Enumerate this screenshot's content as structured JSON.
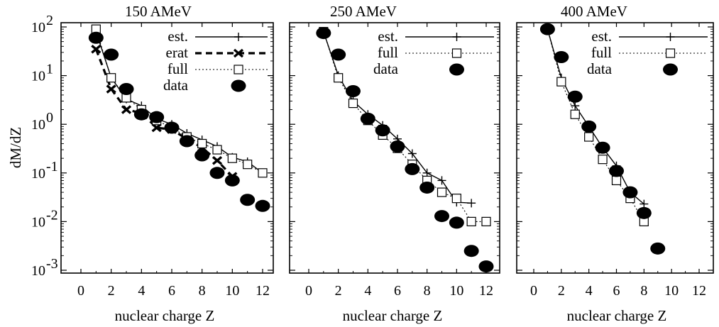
{
  "chart_data": [
    {
      "type": "line",
      "title": "150 AMeV",
      "xlabel": "nuclear charge Z",
      "ylabel": "dM/dZ",
      "y_scale": "log",
      "xlim": [
        0,
        12.5
      ],
      "ylim": [
        0.001,
        100
      ],
      "x_ticks": [
        "0",
        "2",
        "4",
        "6",
        "8",
        "10",
        "12"
      ],
      "legend_position": "top-right",
      "series": [
        {
          "name": "est.",
          "style": "solid-plus",
          "x": [
            1,
            2,
            3,
            4,
            5,
            6,
            7,
            8,
            9,
            10,
            11,
            12
          ],
          "y": [
            80,
            9,
            3.3,
            2.4,
            1.3,
            1.0,
            0.65,
            0.48,
            0.35,
            0.21,
            0.17,
            0.1
          ]
        },
        {
          "name": "erat",
          "style": "dashed-bold-x",
          "x": [
            1,
            2,
            3,
            4,
            5,
            6,
            7,
            8,
            9,
            10
          ],
          "y": [
            35,
            5.3,
            2.0,
            1.7,
            0.85,
            0.78,
            0.5,
            0.33,
            0.18,
            0.085
          ]
        },
        {
          "name": "full",
          "style": "dotted-square",
          "x": [
            1,
            2,
            3,
            4,
            5,
            6,
            7,
            8,
            9,
            10,
            11,
            12
          ],
          "y": [
            90,
            9,
            3.5,
            2.0,
            1.2,
            0.85,
            0.55,
            0.4,
            0.3,
            0.2,
            0.15,
            0.1
          ]
        },
        {
          "name": "data",
          "style": "filled-ellipse",
          "x": [
            1,
            2,
            3,
            4,
            5,
            6,
            7,
            8,
            9,
            10,
            11,
            12
          ],
          "y": [
            60,
            27,
            5.3,
            1.6,
            1.4,
            0.85,
            0.45,
            0.23,
            0.1,
            0.07,
            0.028,
            0.021
          ]
        }
      ]
    },
    {
      "type": "line",
      "title": "250 AMeV",
      "xlabel": "nuclear charge Z",
      "y_scale": "log",
      "xlim": [
        0,
        12.5
      ],
      "ylim": [
        0.001,
        100
      ],
      "x_ticks": [
        "0",
        "2",
        "4",
        "6",
        "8",
        "10",
        "12"
      ],
      "legend_position": "top-right",
      "series": [
        {
          "name": "est.",
          "style": "solid-plus",
          "x": [
            1,
            2,
            3,
            4,
            5,
            6,
            7,
            8,
            9,
            10,
            11
          ],
          "y": [
            80,
            10,
            3.0,
            1.6,
            0.95,
            0.5,
            0.25,
            0.1,
            0.07,
            0.025,
            0.024
          ]
        },
        {
          "name": "full",
          "style": "dotted-square",
          "x": [
            1,
            2,
            3,
            4,
            5,
            6,
            7,
            8,
            9,
            10,
            11,
            12
          ],
          "y": [
            80,
            9,
            2.7,
            1.2,
            0.6,
            0.32,
            0.15,
            0.07,
            0.04,
            0.03,
            0.01,
            0.01
          ]
        },
        {
          "name": "data",
          "style": "filled-ellipse",
          "x": [
            1,
            2,
            3,
            4,
            5,
            6,
            7,
            8,
            9,
            10,
            11,
            12
          ],
          "y": [
            75,
            27,
            4.8,
            1.3,
            0.75,
            0.35,
            0.12,
            0.05,
            0.013,
            0.0095,
            0.0025,
            0.0012
          ]
        }
      ]
    },
    {
      "type": "line",
      "title": "400 AMeV",
      "xlabel": "nuclear charge Z",
      "y_scale": "log",
      "xlim": [
        0,
        12.5
      ],
      "ylim": [
        0.001,
        100
      ],
      "x_ticks": [
        "0",
        "2",
        "4",
        "6",
        "8",
        "10",
        "12"
      ],
      "legend_position": "top-right",
      "series": [
        {
          "name": "est.",
          "style": "solid-plus",
          "x": [
            1,
            2,
            3,
            4,
            5,
            6,
            7,
            8
          ],
          "y": [
            90,
            9,
            2.4,
            0.9,
            0.33,
            0.14,
            0.04,
            0.023
          ]
        },
        {
          "name": "full",
          "style": "dotted-square",
          "x": [
            1,
            2,
            3,
            4,
            5,
            6,
            7,
            8
          ],
          "y": [
            90,
            7.5,
            1.6,
            0.55,
            0.19,
            0.07,
            0.03,
            0.01
          ]
        },
        {
          "name": "data",
          "style": "filled-ellipse",
          "x": [
            1,
            2,
            3,
            4,
            5,
            6,
            7,
            8,
            9
          ],
          "y": [
            90,
            24,
            3.7,
            0.9,
            0.33,
            0.11,
            0.04,
            0.015,
            0.0028
          ]
        }
      ]
    }
  ]
}
